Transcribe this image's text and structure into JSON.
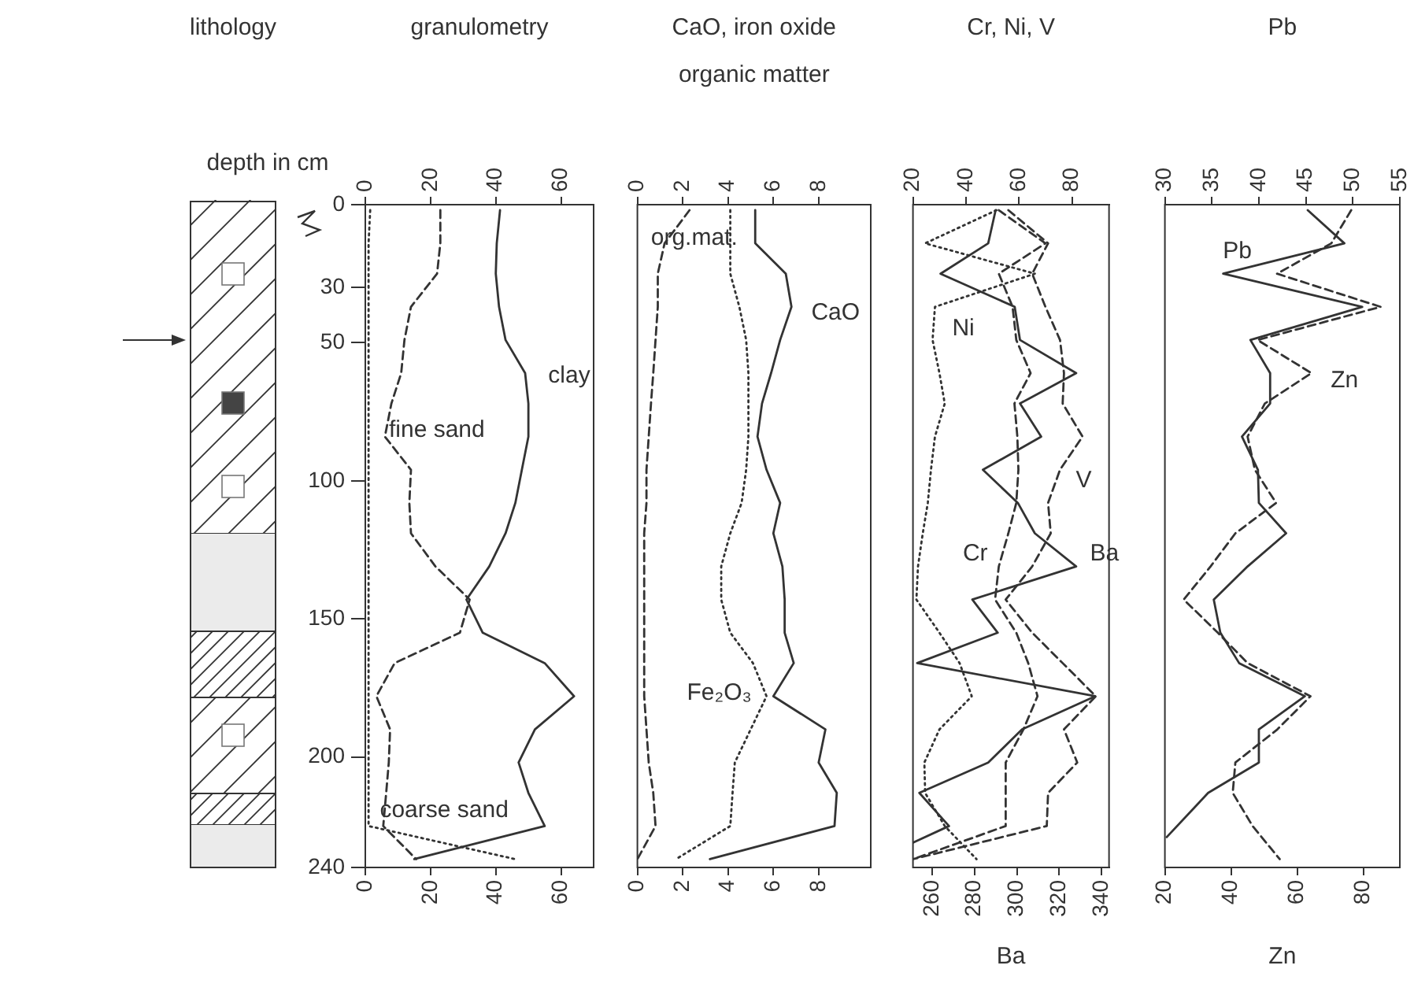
{
  "chart_data": [
    {
      "type": "line",
      "title": "granulometry",
      "ylabel": "depth in cm",
      "annotations": [
        "lithology"
      ],
      "xlim": [
        0,
        70
      ],
      "xticks": [
        0,
        20,
        40,
        60
      ],
      "x2lim": [
        0,
        70
      ],
      "x2ticks": [
        0,
        20,
        40,
        60
      ],
      "ylim": [
        240,
        0
      ],
      "yticks": [
        0,
        30,
        50,
        100,
        150,
        200,
        240
      ],
      "grid": false,
      "legend": false,
      "marker": "none",
      "series": [
        {
          "name": "clay",
          "color": "#333333",
          "line_style": "solid",
          "x": [
            41.3,
            40.3,
            40,
            41,
            43,
            49,
            50,
            50,
            48,
            46,
            43,
            38,
            31,
            36,
            55,
            64,
            52,
            47,
            50,
            55,
            15
          ],
          "values": [
            2,
            14,
            25,
            37,
            49,
            61,
            72,
            84,
            96,
            108,
            119,
            131,
            143,
            155,
            166,
            178,
            190,
            202,
            213,
            225,
            237
          ]
        },
        {
          "name": "fine sand",
          "color": "#333333",
          "line_style": "dashed",
          "x": [
            23,
            23,
            22,
            14,
            12,
            11,
            8,
            6,
            14,
            13.5,
            14,
            21.5,
            32,
            29,
            9,
            3.4,
            7.6,
            7.2,
            6.4,
            5.5,
            15.6
          ],
          "values": [
            2,
            14,
            25,
            37,
            49,
            61,
            72,
            84,
            96,
            108,
            119,
            131,
            143,
            155,
            166,
            178,
            190,
            202,
            213,
            225,
            237
          ]
        },
        {
          "name": "coarse sand",
          "color": "#333333",
          "line_style": "dotted",
          "x": [
            1.5,
            1,
            1,
            1,
            1,
            1,
            1,
            1,
            1,
            1,
            1,
            1,
            1,
            1,
            1,
            1,
            1,
            1,
            1,
            1,
            46
          ],
          "values": [
            2,
            14,
            25,
            37,
            49,
            61,
            72,
            84,
            96,
            108,
            119,
            131,
            143,
            155,
            166,
            178,
            190,
            202,
            213,
            225,
            237
          ]
        }
      ]
    },
    {
      "type": "line",
      "title": "CaO, iron oxide",
      "subtitle": "organic matter",
      "xlim": [
        0,
        10.3
      ],
      "xticks": [
        0,
        2,
        4,
        6,
        8
      ],
      "x2lim": [
        0,
        10.3
      ],
      "x2ticks": [
        0,
        2,
        4,
        6,
        8
      ],
      "ylim": [
        240,
        0
      ],
      "tick_labels": "x",
      "grid": false,
      "legend": false,
      "marker": "none",
      "series": [
        {
          "name": "CaO",
          "color": "#333333",
          "line_style": "solid",
          "x": [
            5.2,
            5.2,
            6.55,
            6.8,
            6.3,
            5.9,
            5.5,
            5.3,
            5.7,
            6.3,
            6,
            6.4,
            6.5,
            6.5,
            6.9,
            6,
            8.3,
            8,
            8.8,
            8.7,
            3.2
          ],
          "values": [
            2,
            14,
            25,
            37,
            49,
            61,
            72,
            84,
            96,
            108,
            119,
            131,
            143,
            155,
            166,
            178,
            190,
            202,
            213,
            225,
            237
          ]
        },
        {
          "name": "Fe₂O₃",
          "color": "#333333",
          "line_style": "dotted",
          "x": [
            4.1,
            4.1,
            4.1,
            4.5,
            4.8,
            4.9,
            4.9,
            4.9,
            4.8,
            4.6,
            4.1,
            3.7,
            3.7,
            4.1,
            5.1,
            5.7,
            5,
            4.3,
            4.2,
            4.1,
            1.7
          ],
          "values": [
            2,
            14,
            25,
            37,
            49,
            61,
            72,
            84,
            96,
            108,
            119,
            131,
            143,
            155,
            166,
            178,
            190,
            202,
            213,
            225,
            237
          ]
        },
        {
          "name": "org.mat.",
          "color": "#333333",
          "line_style": "dashed",
          "x": [
            2.3,
            1.2,
            0.9,
            0.9,
            0.8,
            0.7,
            0.6,
            0.5,
            0.4,
            0.4,
            0.3,
            0.3,
            0.3,
            0.3,
            0.3,
            0.3,
            0.4,
            0.5,
            0.7,
            0.8,
            0
          ],
          "values": [
            2,
            14,
            25,
            37,
            49,
            61,
            72,
            84,
            96,
            108,
            119,
            131,
            143,
            155,
            166,
            178,
            190,
            202,
            213,
            225,
            237
          ]
        }
      ]
    },
    {
      "type": "line",
      "title": "Cr, Ni, V",
      "xlabel": "Ba",
      "xlim": [
        251,
        343.5
      ],
      "xticks": [
        260,
        280,
        300,
        320,
        340
      ],
      "x2lim": [
        20,
        94
      ],
      "x2ticks": [
        20,
        40,
        60,
        80
      ],
      "ylim": [
        240,
        0
      ],
      "tick_labels": "x",
      "grid": false,
      "legend": false,
      "marker": "none",
      "series": [
        {
          "name": "Ba",
          "color": "#333333",
          "line_style": "solid",
          "x": [
            290,
            286.5,
            264,
            299,
            301.5,
            328,
            301.5,
            311.5,
            284,
            300.5,
            308.5,
            328,
            279,
            291,
            253,
            337,
            302.5,
            286.5,
            254,
            268,
            251
          ],
          "values": [
            2,
            14,
            25,
            37,
            49,
            61,
            72,
            84,
            96,
            108,
            119,
            131,
            143,
            155,
            166,
            178,
            190,
            202,
            213,
            225,
            231
          ]
        },
        {
          "name": "V",
          "axis": "x2",
          "color": "#333333",
          "line_style": "dashed",
          "x": [
            56,
            71,
            65,
            70,
            75.5,
            77,
            76.5,
            84,
            75.5,
            71,
            72,
            65,
            55,
            65,
            76.5,
            89,
            77,
            82,
            71,
            70.5,
            20
          ],
          "values": [
            2,
            14,
            25,
            37,
            49,
            61,
            72,
            84,
            96,
            108,
            119,
            131,
            143,
            155,
            166,
            178,
            190,
            202,
            213,
            225,
            237
          ]
        },
        {
          "name": "Cr",
          "axis": "x2",
          "color": "#333333",
          "line_style": "dashed",
          "x": [
            52.4,
            70,
            52.4,
            57.6,
            59,
            64.4,
            58.3,
            59.4,
            59.8,
            59,
            56,
            52.4,
            51,
            59,
            63.5,
            67,
            61.7,
            55,
            55,
            55,
            20
          ],
          "values": [
            2,
            14,
            25,
            37,
            49,
            61,
            72,
            84,
            96,
            108,
            119,
            131,
            143,
            155,
            166,
            178,
            190,
            202,
            213,
            225,
            237
          ]
        },
        {
          "name": "Ni",
          "axis": "x2",
          "color": "#333333",
          "line_style": "dotted",
          "x": [
            51.5,
            24.6,
            66,
            28.3,
            27.4,
            30,
            32,
            28.3,
            26.8,
            25.6,
            23.7,
            21.9,
            21.3,
            30,
            37.6,
            42.2,
            30,
            24.3,
            24.6,
            32,
            44
          ],
          "values": [
            2,
            14,
            25,
            37,
            49,
            61,
            72,
            84,
            96,
            108,
            119,
            131,
            143,
            155,
            166,
            178,
            190,
            202,
            213,
            225,
            237
          ]
        }
      ]
    },
    {
      "type": "line",
      "title": "Pb",
      "xlabel": "Zn",
      "xlim": [
        20,
        91
      ],
      "xticks": [
        20,
        40,
        60,
        80
      ],
      "x2lim": [
        30,
        55
      ],
      "x2ticks": [
        30,
        35,
        40,
        45,
        50,
        55
      ],
      "ylim": [
        240,
        0
      ],
      "tick_labels": "x",
      "grid": false,
      "legend": false,
      "marker": "none",
      "series": [
        {
          "name": "Pb",
          "axis": "x2",
          "color": "#333333",
          "line_style": "solid",
          "x": [
            45.2,
            49.1,
            36.2,
            51,
            39.1,
            41.2,
            41.2,
            38.2,
            39.9,
            40,
            42.9,
            38.8,
            35.2,
            35.9,
            37.9,
            44.9,
            40,
            40,
            34.6,
            30.2
          ],
          "values": [
            2,
            14,
            25,
            37,
            49,
            61,
            72,
            84,
            96,
            108,
            119,
            131,
            143,
            155,
            166,
            178,
            190,
            202,
            213,
            229
          ]
        },
        {
          "name": "Zn",
          "color": "#333333",
          "line_style": "dashed",
          "x": [
            76.3,
            70.3,
            53.9,
            85.2,
            48,
            64.3,
            50.2,
            45,
            47.2,
            53.6,
            41.3,
            33.8,
            25.7,
            36,
            45,
            64,
            54,
            41.3,
            40.5,
            46.5,
            54.7
          ],
          "values": [
            2,
            14,
            25,
            37,
            49,
            61,
            72,
            84,
            96,
            108,
            119,
            131,
            143,
            155,
            166,
            178,
            190,
            202,
            213,
            225,
            237
          ]
        }
      ]
    }
  ]
}
